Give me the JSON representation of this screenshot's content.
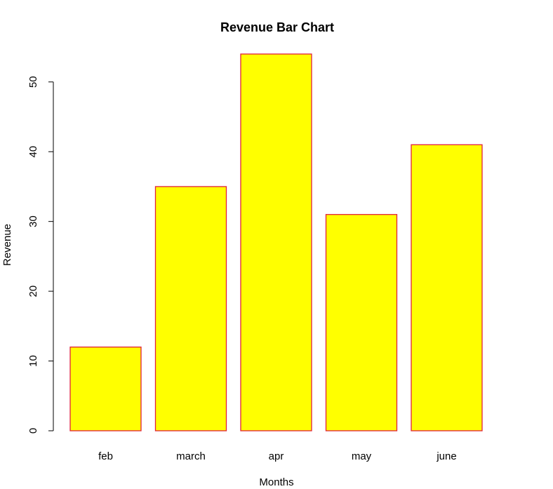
{
  "chart_data": {
    "type": "bar",
    "title": "Revenue Bar Chart",
    "xlabel": "Months",
    "ylabel": "Revenue",
    "categories": [
      "feb",
      "march",
      "apr",
      "may",
      "june"
    ],
    "values": [
      12,
      35,
      54,
      31,
      41
    ],
    "ylim": [
      0,
      54
    ],
    "yticks": [
      0,
      10,
      20,
      30,
      40,
      50
    ],
    "grid": false,
    "legend": "none",
    "colors": {
      "bar_fill": "#FFFF00",
      "bar_stroke": "#E0203A",
      "axis": "#000000",
      "text": "#000000"
    }
  }
}
